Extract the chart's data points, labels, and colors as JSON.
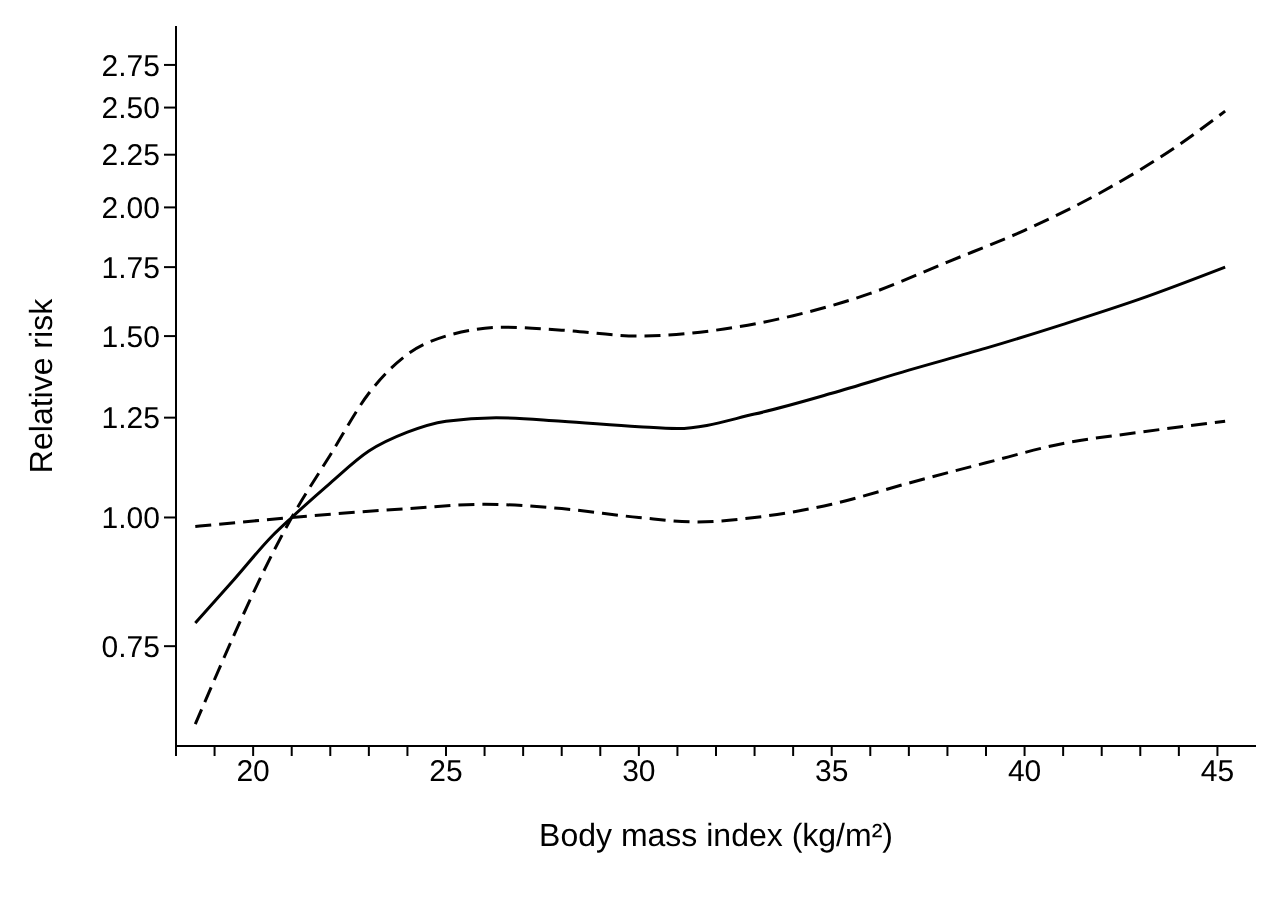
{
  "chart_data": {
    "type": "line",
    "xlabel": "Body mass index (kg/m²)",
    "ylabel": "Relative risk",
    "log": "y",
    "grid": false,
    "legend": false,
    "marker": "none",
    "xlim": [
      18,
      46
    ],
    "xticks": [
      {
        "value": 18,
        "label": null
      },
      {
        "value": 19,
        "label": null
      },
      20,
      {
        "value": 21,
        "label": null
      },
      {
        "value": 22,
        "label": null
      },
      {
        "value": 23,
        "label": null
      },
      {
        "value": 24,
        "label": null
      },
      25,
      {
        "value": 26,
        "label": null
      },
      {
        "value": 27,
        "label": null
      },
      {
        "value": 28,
        "label": null
      },
      {
        "value": 29,
        "label": null
      },
      30,
      {
        "value": 31,
        "label": null
      },
      {
        "value": 32,
        "label": null
      },
      {
        "value": 33,
        "label": null
      },
      {
        "value": 34,
        "label": null
      },
      35,
      {
        "value": 36,
        "label": null
      },
      {
        "value": 37,
        "label": null
      },
      {
        "value": 38,
        "label": null
      },
      {
        "value": 39,
        "label": null
      },
      40,
      {
        "value": 41,
        "label": null
      },
      {
        "value": 42,
        "label": null
      },
      {
        "value": 43,
        "label": null
      },
      {
        "value": 44,
        "label": null
      },
      45
    ],
    "ylim": [
      0.6,
      3
    ],
    "yticks": [
      {
        "value": 0.75,
        "label": "0.75"
      },
      {
        "value": 1,
        "label": "1.00"
      },
      {
        "value": 1.25,
        "label": "1.25"
      },
      {
        "value": 1.5,
        "label": "1.50"
      },
      {
        "value": 1.75,
        "label": "1.75"
      },
      {
        "value": 2,
        "label": "2.00"
      },
      {
        "value": 2.25,
        "label": "2.25"
      },
      {
        "value": 2.5,
        "label": "2.50"
      },
      {
        "value": 2.75,
        "label": "2.75"
      }
    ],
    "series": [
      {
        "color": "#000000",
        "line_style": "solid",
        "x": [
          18.5,
          19.5,
          20.5,
          21,
          22,
          23,
          24,
          25,
          26.3,
          28,
          30,
          31,
          33,
          35,
          37,
          39,
          41,
          43,
          45.2
        ],
        "values": [
          0.79,
          0.87,
          0.96,
          1.0,
          1.08,
          1.16,
          1.21,
          1.24,
          1.25,
          1.24,
          1.225,
          1.22,
          1.26,
          1.32,
          1.39,
          1.46,
          1.54,
          1.63,
          1.75
        ]
      },
      {
        "color": "#000000",
        "line_style": "dashed",
        "x": [
          18.5,
          21,
          22,
          23,
          24,
          25,
          26.5,
          28,
          30,
          32,
          34,
          36,
          38,
          40,
          42,
          44,
          45.2
        ],
        "values": [
          0.63,
          1.0,
          1.15,
          1.32,
          1.44,
          1.5,
          1.53,
          1.52,
          1.5,
          1.52,
          1.57,
          1.65,
          1.77,
          1.9,
          2.07,
          2.3,
          2.48
        ]
      },
      {
        "color": "#000000",
        "line_style": "dashed",
        "x": [
          18.5,
          21,
          24,
          26,
          28,
          30,
          31.5,
          33,
          35,
          37,
          39,
          41,
          43,
          45.2
        ],
        "values": [
          0.98,
          1.0,
          1.02,
          1.03,
          1.02,
          1.0,
          0.99,
          1.0,
          1.03,
          1.08,
          1.13,
          1.18,
          1.21,
          1.24
        ]
      }
    ]
  }
}
